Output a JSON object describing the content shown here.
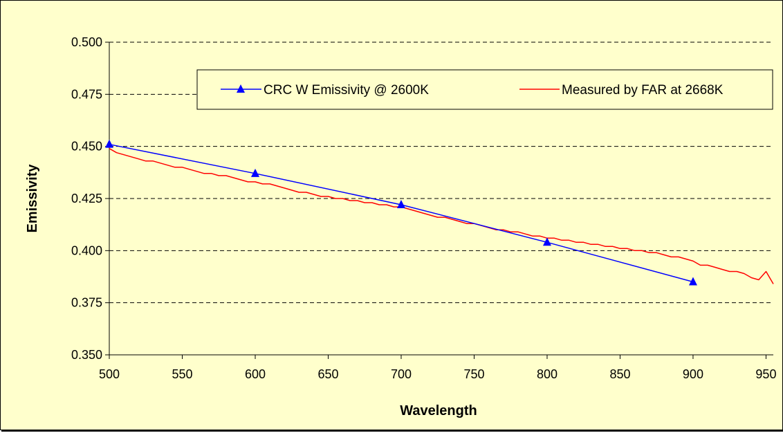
{
  "chart_data": {
    "type": "line",
    "title": "",
    "xlabel": "Wavelength",
    "ylabel": "Emissivity",
    "xlim": [
      500,
      955
    ],
    "ylim": [
      0.35,
      0.5
    ],
    "x_ticks": [
      "500",
      "550",
      "600",
      "650",
      "700",
      "750",
      "800",
      "850",
      "900",
      "950"
    ],
    "x_tick_values": [
      500,
      550,
      600,
      650,
      700,
      750,
      800,
      850,
      900,
      950
    ],
    "y_ticks": [
      "0.350",
      "0.375",
      "0.400",
      "0.425",
      "0.450",
      "0.475",
      "0.500"
    ],
    "y_tick_values": [
      0.35,
      0.375,
      0.4,
      0.425,
      0.45,
      0.475,
      0.5
    ],
    "grid": "horizontal dashed",
    "legend_position": "top",
    "background_color": "#FFFFCC",
    "series": [
      {
        "name": "CRC W Emissivity @ 2600K",
        "color": "#0000FF",
        "marker": "triangle",
        "x": [
          500,
          600,
          700,
          800,
          900
        ],
        "y": [
          0.451,
          0.437,
          0.422,
          0.404,
          0.385
        ]
      },
      {
        "name": "Measured by FAR at 2668K",
        "color": "#FF0000",
        "marker": "none",
        "x": [
          500,
          505,
          510,
          515,
          520,
          525,
          530,
          535,
          540,
          545,
          550,
          555,
          560,
          565,
          570,
          575,
          580,
          585,
          590,
          595,
          600,
          605,
          610,
          615,
          620,
          625,
          630,
          635,
          640,
          645,
          650,
          655,
          660,
          665,
          670,
          675,
          680,
          685,
          690,
          695,
          700,
          705,
          710,
          715,
          720,
          725,
          730,
          735,
          740,
          745,
          750,
          755,
          760,
          765,
          770,
          775,
          780,
          785,
          790,
          795,
          800,
          805,
          810,
          815,
          820,
          825,
          830,
          835,
          840,
          845,
          850,
          855,
          860,
          865,
          870,
          875,
          880,
          885,
          890,
          895,
          900,
          905,
          910,
          915,
          920,
          925,
          930,
          935,
          940,
          945,
          950,
          955
        ],
        "y": [
          0.449,
          0.447,
          0.446,
          0.445,
          0.444,
          0.443,
          0.443,
          0.442,
          0.441,
          0.44,
          0.44,
          0.439,
          0.438,
          0.437,
          0.437,
          0.436,
          0.436,
          0.435,
          0.434,
          0.433,
          0.433,
          0.432,
          0.432,
          0.431,
          0.43,
          0.429,
          0.428,
          0.428,
          0.427,
          0.426,
          0.426,
          0.425,
          0.425,
          0.424,
          0.424,
          0.423,
          0.423,
          0.422,
          0.422,
          0.421,
          0.421,
          0.42,
          0.419,
          0.418,
          0.417,
          0.416,
          0.416,
          0.415,
          0.414,
          0.413,
          0.413,
          0.412,
          0.411,
          0.41,
          0.41,
          0.409,
          0.409,
          0.408,
          0.407,
          0.407,
          0.406,
          0.406,
          0.405,
          0.405,
          0.404,
          0.404,
          0.403,
          0.403,
          0.402,
          0.402,
          0.401,
          0.401,
          0.4,
          0.4,
          0.399,
          0.399,
          0.398,
          0.397,
          0.397,
          0.396,
          0.395,
          0.393,
          0.393,
          0.392,
          0.391,
          0.39,
          0.39,
          0.389,
          0.387,
          0.386,
          0.39,
          0.384
        ]
      }
    ]
  }
}
